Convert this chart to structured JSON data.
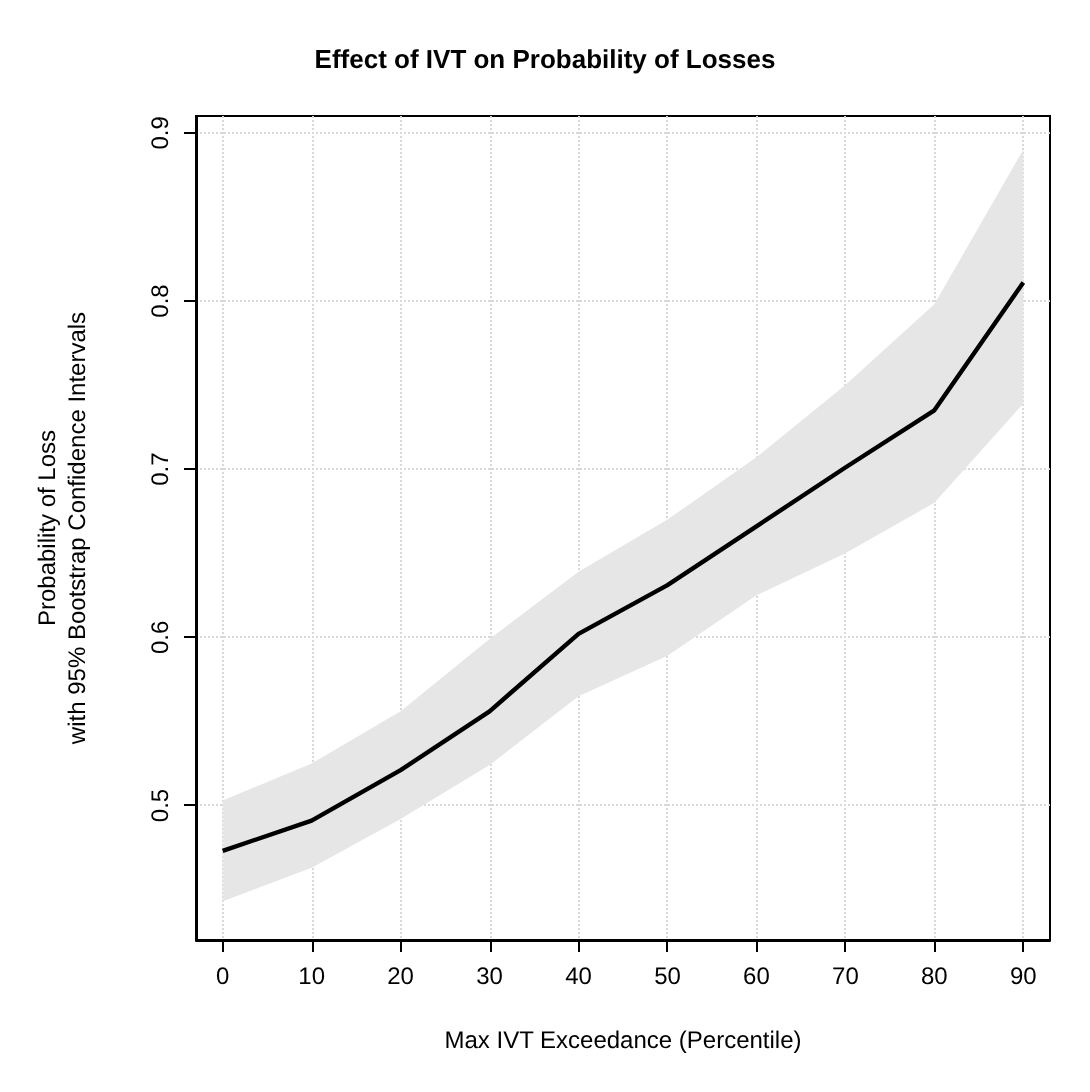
{
  "chart_data": {
    "type": "line",
    "title": "Effect of IVT on Probability of Losses",
    "xlabel": "Max IVT Exceedance (Percentile)",
    "ylabel": "Probability of Loss\nwith 95% Bootstrap Confidence Intervals",
    "x": [
      0,
      10,
      20,
      30,
      40,
      50,
      60,
      70,
      80,
      90
    ],
    "series": [
      {
        "color": "#000000",
        "values": [
          0.473,
          0.491,
          0.521,
          0.556,
          0.602,
          0.631,
          0.666,
          0.701,
          0.735,
          0.811
        ],
        "lower": [
          0.443,
          0.463,
          0.492,
          0.524,
          0.565,
          0.589,
          0.625,
          0.65,
          0.68,
          0.739
        ],
        "upper": [
          0.503,
          0.525,
          0.556,
          0.599,
          0.639,
          0.67,
          0.707,
          0.75,
          0.798,
          0.89
        ]
      }
    ],
    "xlim": [
      -3,
      93
    ],
    "xticks": [
      0,
      10,
      20,
      30,
      40,
      50,
      60,
      70,
      80,
      90
    ],
    "ylim": [
      0.42,
      0.91
    ],
    "yticks": [
      0.5,
      0.6,
      0.7,
      0.8,
      0.9
    ],
    "grid": true,
    "marker": "none",
    "line_style": "solid"
  }
}
